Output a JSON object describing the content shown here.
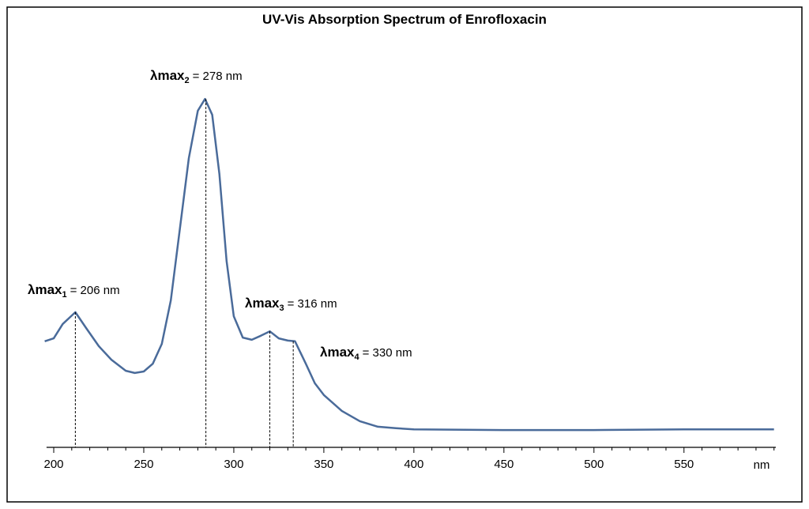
{
  "chart_data": {
    "type": "line",
    "title": "UV-Vis Absorption Spectrum of Enrofloxacin",
    "x_label": "nm",
    "x": [
      195,
      200,
      205,
      212,
      218,
      225,
      232,
      240,
      245,
      250,
      255,
      260,
      265,
      270,
      275,
      280,
      284,
      288,
      292,
      296,
      300,
      305,
      310,
      315,
      320,
      325,
      330,
      334,
      340,
      345,
      350,
      360,
      370,
      380,
      390,
      400,
      450,
      500,
      550,
      600
    ],
    "series": [
      {
        "color": "#4a6b9a",
        "values": [
          0.288,
          0.296,
          0.335,
          0.367,
          0.324,
          0.275,
          0.238,
          0.208,
          0.202,
          0.206,
          0.227,
          0.281,
          0.399,
          0.592,
          0.785,
          0.914,
          0.946,
          0.903,
          0.742,
          0.506,
          0.356,
          0.298,
          0.292,
          0.303,
          0.315,
          0.296,
          0.29,
          0.288,
          0.227,
          0.174,
          0.142,
          0.099,
          0.071,
          0.056,
          0.052,
          0.049,
          0.047,
          0.047,
          0.049,
          0.049
        ]
      }
    ],
    "xlim": [
      196,
      601
    ],
    "ylim": [
      0,
      1
    ],
    "xticks": [
      200,
      250,
      300,
      350,
      400,
      450,
      500,
      550
    ],
    "xminor_ticks": [
      210,
      220,
      230,
      240,
      260,
      270,
      280,
      290,
      310,
      320,
      330,
      340,
      360,
      370,
      380,
      390,
      410,
      420,
      430,
      440,
      460,
      470,
      480,
      490,
      510,
      520,
      530,
      540,
      560,
      570,
      580,
      590,
      600
    ],
    "annotations": [
      {
        "label": "λmax",
        "subscript": "1",
        "text": "= 206 nm",
        "x": 212,
        "y": 0.367
      },
      {
        "label": "λmax",
        "subscript": "2",
        "text": "= 278 nm",
        "x": 284.5,
        "y": 0.946
      },
      {
        "label": "λmax",
        "subscript": "3",
        "text": "= 316 nm",
        "x": 320,
        "y": 0.315
      },
      {
        "label": "λmax",
        "subscript": "4",
        "text": "= 330 nm",
        "x": 333,
        "y": 0.288
      }
    ]
  }
}
